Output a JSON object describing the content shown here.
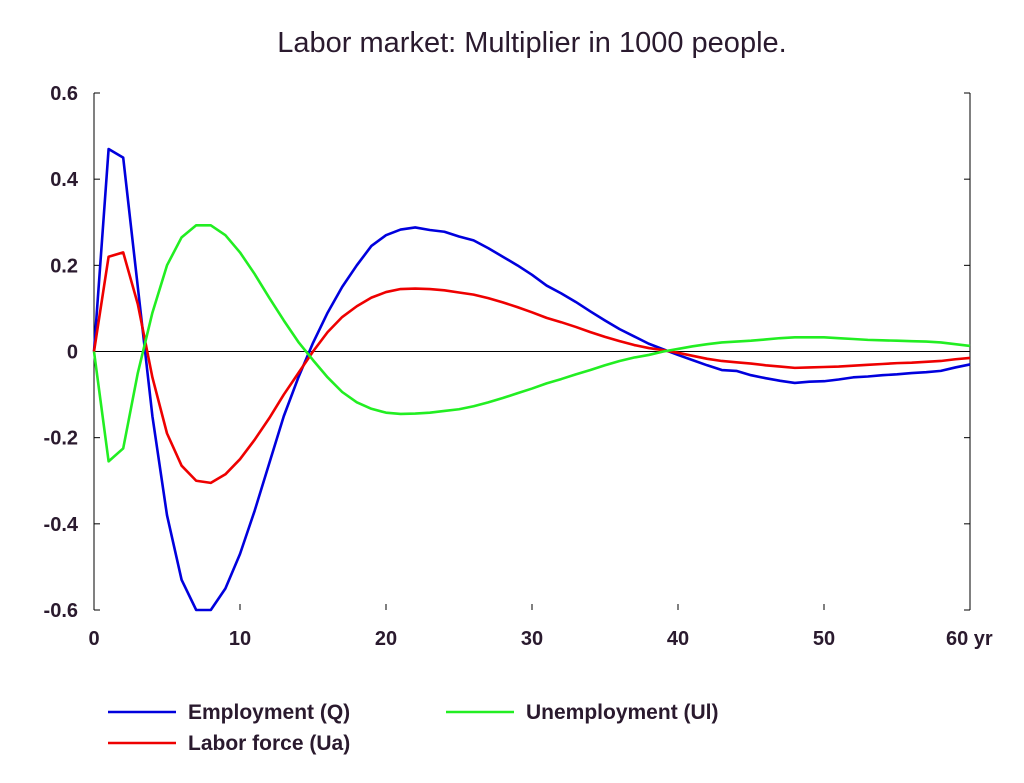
{
  "chart_data": {
    "type": "line",
    "title": "Labor market: Multiplier in 1000 people.",
    "xlabel": "",
    "ylabel": "",
    "xlim": [
      0,
      60
    ],
    "ylim": [
      -0.6,
      0.6
    ],
    "x_ticks": [
      0,
      10,
      20,
      30,
      40,
      50,
      60
    ],
    "x_tick_labels": [
      "0",
      "10",
      "20",
      "30",
      "40",
      "50",
      "60 yr"
    ],
    "y_ticks": [
      0.6,
      0.4,
      0.2,
      0,
      -0.2,
      -0.4,
      -0.6
    ],
    "y_tick_labels": [
      "0.6",
      "0.4",
      "0.2",
      "0",
      "-0.2",
      "-0.4",
      "-0.6"
    ],
    "grid": false,
    "zero_line": true,
    "legend_position": "bottom",
    "x": [
      0,
      1,
      2,
      3,
      4,
      5,
      6,
      7,
      8,
      9,
      10,
      11,
      12,
      13,
      14,
      15,
      16,
      17,
      18,
      19,
      20,
      21,
      22,
      23,
      24,
      25,
      26,
      27,
      28,
      29,
      30,
      31,
      32,
      33,
      34,
      35,
      36,
      37,
      38,
      39,
      40,
      41,
      42,
      43,
      44,
      45,
      46,
      47,
      48,
      49,
      50,
      51,
      52,
      53,
      54,
      55,
      56,
      57,
      58,
      59,
      60
    ],
    "series": [
      {
        "name": "Employment (Q)",
        "color": "#0000dd",
        "values": [
          0,
          0.47,
          0.45,
          0.15,
          -0.15,
          -0.38,
          -0.53,
          -0.6,
          -0.6,
          -0.55,
          -0.47,
          -0.37,
          -0.26,
          -0.15,
          -0.06,
          0.02,
          0.09,
          0.15,
          0.2,
          0.245,
          0.27,
          0.283,
          0.288,
          0.282,
          0.278,
          0.267,
          0.258,
          0.24,
          0.22,
          0.2,
          0.178,
          0.153,
          0.135,
          0.115,
          0.093,
          0.072,
          0.052,
          0.035,
          0.018,
          0.005,
          -0.008,
          -0.02,
          -0.032,
          -0.043,
          -0.045,
          -0.055,
          -0.062,
          -0.068,
          -0.073,
          -0.07,
          -0.069,
          -0.065,
          -0.06,
          -0.058,
          -0.055,
          -0.053,
          -0.05,
          -0.048,
          -0.045,
          -0.037,
          -0.03
        ]
      },
      {
        "name": "Labor force (Ua)",
        "color": "#ee0000",
        "values": [
          0,
          0.22,
          0.23,
          0.11,
          -0.06,
          -0.19,
          -0.265,
          -0.3,
          -0.305,
          -0.285,
          -0.25,
          -0.205,
          -0.155,
          -0.1,
          -0.05,
          0,
          0.045,
          0.08,
          0.105,
          0.125,
          0.138,
          0.145,
          0.146,
          0.145,
          0.142,
          0.137,
          0.132,
          0.124,
          0.114,
          0.103,
          0.091,
          0.078,
          0.068,
          0.057,
          0.045,
          0.034,
          0.024,
          0.015,
          0.008,
          0.003,
          -0.003,
          -0.01,
          -0.017,
          -0.022,
          -0.025,
          -0.028,
          -0.032,
          -0.035,
          -0.038,
          -0.037,
          -0.036,
          -0.035,
          -0.033,
          -0.031,
          -0.029,
          -0.027,
          -0.026,
          -0.024,
          -0.022,
          -0.018,
          -0.015
        ]
      },
      {
        "name": "Unemployment (Ul)",
        "color": "#22ee22",
        "values": [
          0,
          -0.255,
          -0.225,
          -0.05,
          0.09,
          0.2,
          0.265,
          0.293,
          0.293,
          0.27,
          0.23,
          0.18,
          0.125,
          0.072,
          0.022,
          -0.02,
          -0.06,
          -0.094,
          -0.118,
          -0.133,
          -0.142,
          -0.145,
          -0.144,
          -0.142,
          -0.138,
          -0.134,
          -0.127,
          -0.118,
          -0.108,
          -0.097,
          -0.086,
          -0.074,
          -0.064,
          -0.053,
          -0.043,
          -0.032,
          -0.022,
          -0.014,
          -0.008,
          0,
          0.006,
          0.012,
          0.017,
          0.021,
          0.023,
          0.025,
          0.028,
          0.031,
          0.033,
          0.033,
          0.033,
          0.031,
          0.029,
          0.027,
          0.026,
          0.025,
          0.024,
          0.023,
          0.021,
          0.017,
          0.013
        ]
      }
    ]
  }
}
